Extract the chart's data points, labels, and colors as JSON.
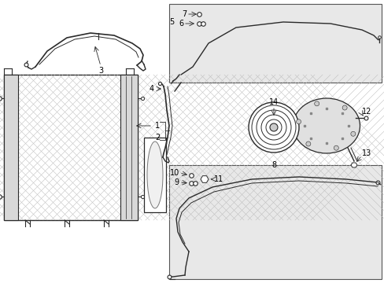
{
  "bg_color": "#ffffff",
  "line_color": "#2a2a2a",
  "shade_color": "#e8e8e8",
  "label_color": "#000000",
  "fig_w": 4.89,
  "fig_h": 3.6,
  "dpi": 100
}
